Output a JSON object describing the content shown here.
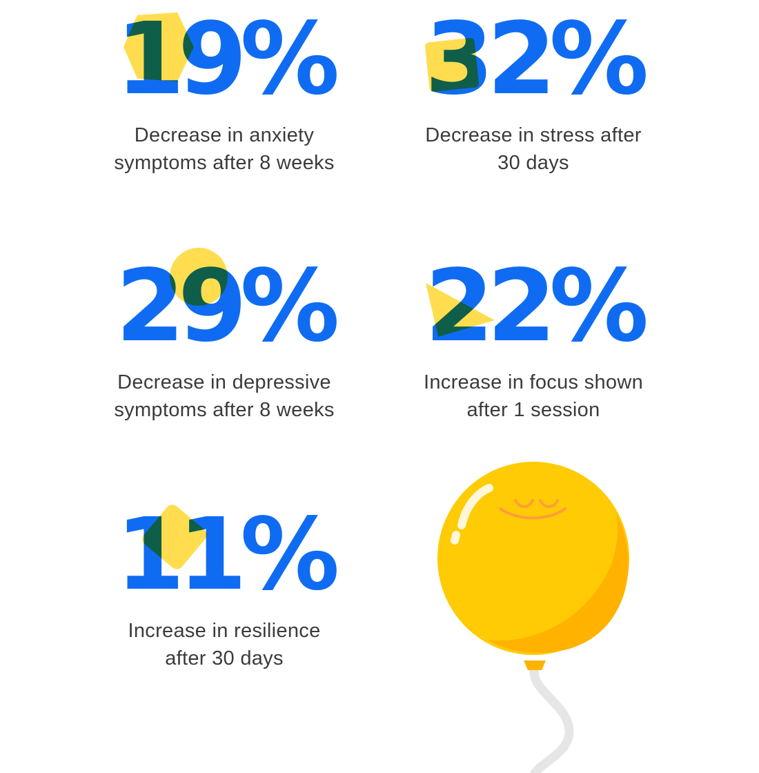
{
  "colors": {
    "number": "#0f6cf2",
    "text": "#3b3b3b",
    "shape_yellow": "#ffd93b",
    "balloon_yellow": "#ffcb05",
    "balloon_shade": "#ffb300",
    "balloon_face": "#ff9d3a",
    "string": "#e6e6e6"
  },
  "stats": [
    {
      "value": "19%",
      "label_line1": "Decrease in anxiety",
      "label_line2": "symptoms after 8 weeks",
      "shape": "hexagon-shape"
    },
    {
      "value": "32%",
      "label_line1": "Decrease in stress after",
      "label_line2": "30 days",
      "shape": "square-shape"
    },
    {
      "value": "29%",
      "label_line1": "Decrease in depressive",
      "label_line2": "symptoms after 8 weeks",
      "shape": "circle-shape"
    },
    {
      "value": "22%",
      "label_line1": "Increase in focus shown",
      "label_line2": "after 1 session",
      "shape": "triangle-shape"
    },
    {
      "value": "11%",
      "label_line1": "Increase in resilience",
      "label_line2": "after 30 days",
      "shape": "diamond-shape"
    }
  ],
  "illustration": {
    "icon": "smiling-balloon-icon"
  }
}
